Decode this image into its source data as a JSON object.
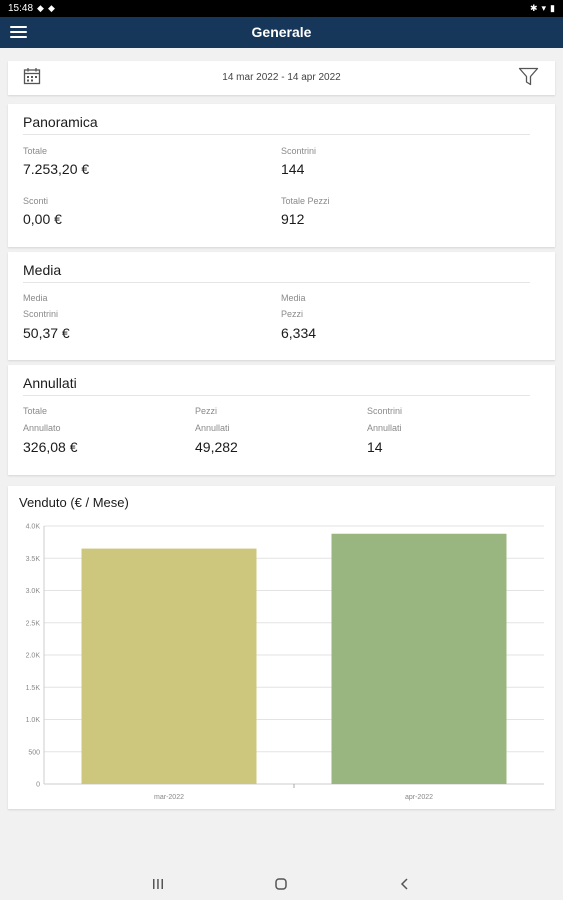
{
  "status_bar": {
    "time": "15:48",
    "left_icons": "",
    "right_icons": ""
  },
  "app_bar": {
    "title": "Generale"
  },
  "date_filter": {
    "range": "14 mar 2022 - 14 apr 2022"
  },
  "panoramica": {
    "title": "Panoramica",
    "totale": {
      "label": "Totale",
      "value": "7.253,20 €"
    },
    "scontrini": {
      "label": "Scontrini",
      "value": "144"
    },
    "sconti": {
      "label": "Sconti",
      "value": "0,00 €"
    },
    "totale_pezzi": {
      "label": "Totale Pezzi",
      "value": "912"
    }
  },
  "media": {
    "title": "Media",
    "scontrini": {
      "label_1": "Media",
      "label_2": "Scontrini",
      "value": "50,37 €"
    },
    "pezzi": {
      "label_1": "Media",
      "label_2": "Pezzi",
      "value": "6,334"
    }
  },
  "annullati": {
    "title": "Annullati",
    "totale": {
      "label_1": "Totale",
      "label_2": "Annullato",
      "value": "326,08 €"
    },
    "pezzi": {
      "label_1": "Pezzi",
      "label_2": "Annullati",
      "value": "49,282"
    },
    "scontrini": {
      "label_1": "Scontrini",
      "label_2": "Annullati",
      "value": "14"
    }
  },
  "chart": {
    "title": "Venduto (€ / Mese)"
  },
  "chart_data": {
    "type": "bar",
    "title": "Venduto (€ / Mese)",
    "categories": [
      "mar-2022",
      "apr-2022"
    ],
    "values": [
      3650,
      3880
    ],
    "colors": [
      "#cdc77e",
      "#99b680"
    ],
    "ylim": [
      0,
      4000
    ],
    "yticks": [
      0,
      500,
      1000,
      1500,
      2000,
      2500,
      3000,
      3500,
      4000
    ],
    "ytick_labels": [
      "0",
      "500",
      "1.0K",
      "1.5K",
      "2.0K",
      "2.5K",
      "3.0K",
      "3.5K",
      "4.0K"
    ],
    "grid": true,
    "xlabel": "",
    "ylabel": ""
  },
  "colors": {
    "app_bar": "#17375a",
    "background": "#f1f1f1"
  }
}
